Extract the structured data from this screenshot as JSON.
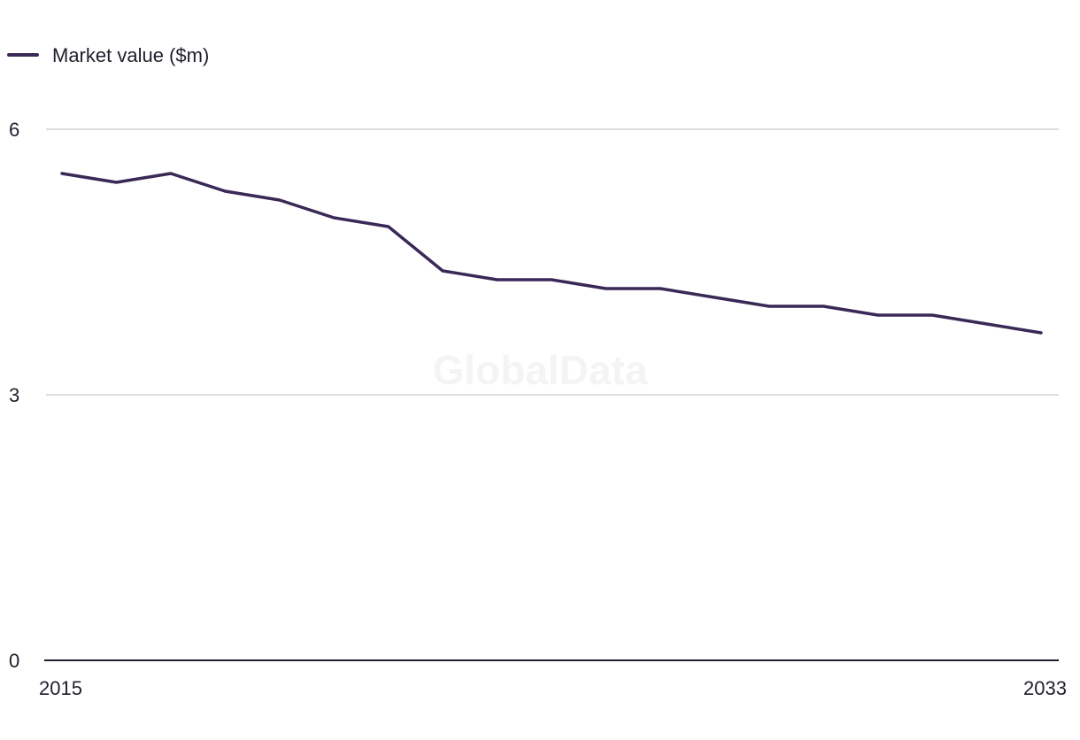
{
  "watermark": "GlobalData",
  "chart_data": {
    "type": "line",
    "title": "",
    "xlabel": "",
    "ylabel": "",
    "x": [
      2015,
      2016,
      2017,
      2018,
      2019,
      2020,
      2021,
      2022,
      2023,
      2024,
      2025,
      2026,
      2027,
      2028,
      2029,
      2030,
      2031,
      2032,
      2033
    ],
    "series": [
      {
        "name": "Market value ($m)",
        "color": "#3a2856",
        "values": [
          5.5,
          5.4,
          5.5,
          5.3,
          5.2,
          5.0,
          4.9,
          4.4,
          4.3,
          4.3,
          4.2,
          4.2,
          4.1,
          4.0,
          4.0,
          3.9,
          3.9,
          3.8,
          3.7
        ]
      }
    ],
    "ylim": [
      0,
      6
    ],
    "y_ticks": [
      "0",
      "3",
      "6"
    ],
    "x_ticks": [
      "2015",
      "2033"
    ],
    "grid": true,
    "legend_position": "top-left",
    "colors": {
      "gridline": "#d4d4d8",
      "axis": "#1f1f2e"
    }
  }
}
